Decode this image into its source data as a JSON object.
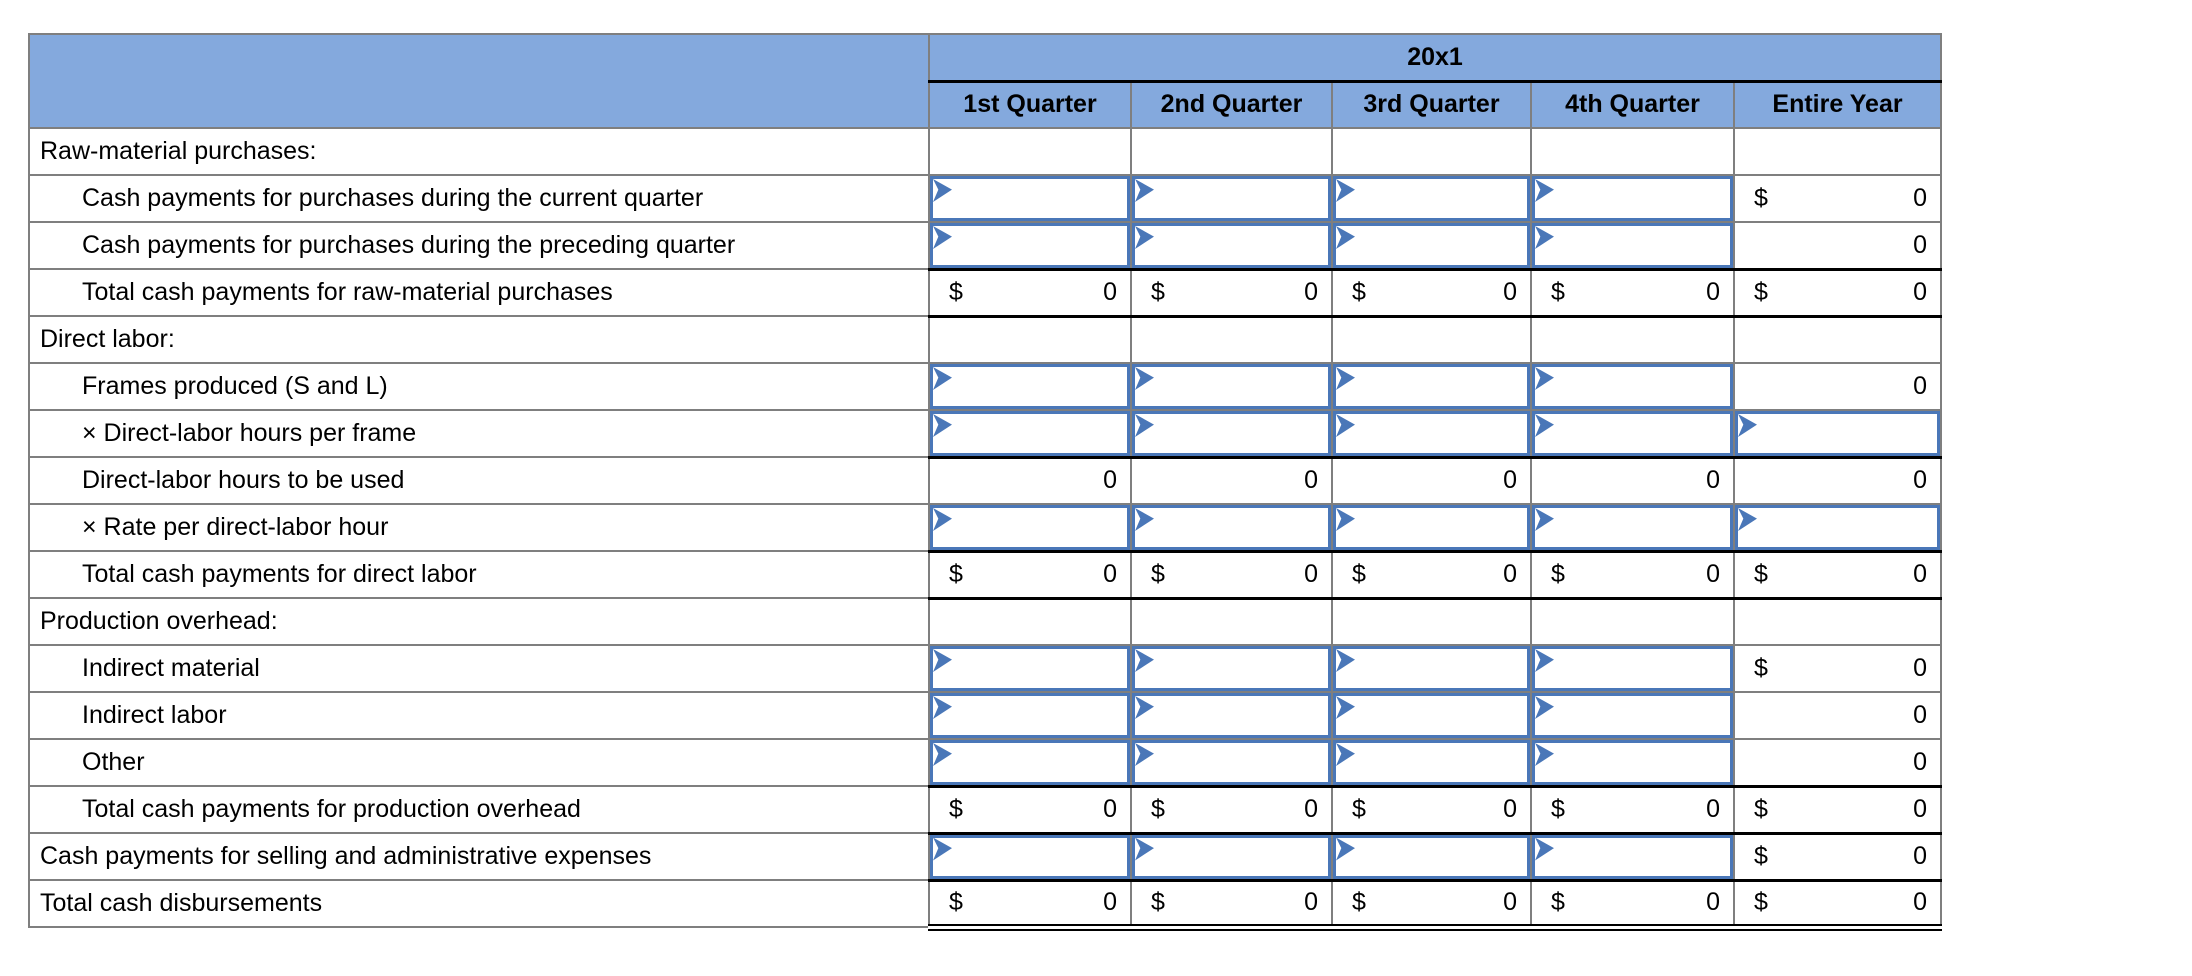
{
  "table": {
    "year_header": "20x1",
    "quarter_columns": [
      "1st Quarter",
      "2nd Quarter",
      "3rd Quarter",
      "4th Quarter",
      "Entire Year"
    ],
    "currency_symbol": "$",
    "rows": [
      {
        "label": "Raw-material purchases:",
        "indent": false,
        "cells": [
          {
            "t": "empty"
          },
          {
            "t": "empty"
          },
          {
            "t": "empty"
          },
          {
            "t": "empty"
          },
          {
            "t": "empty"
          }
        ]
      },
      {
        "label": "Cash payments for purchases during the current quarter",
        "indent": true,
        "cells": [
          {
            "t": "input"
          },
          {
            "t": "input"
          },
          {
            "t": "input"
          },
          {
            "t": "input"
          },
          {
            "t": "val",
            "dollar": true,
            "v": "0"
          }
        ]
      },
      {
        "label": "Cash payments for purchases during the preceding quarter",
        "indent": true,
        "cells": [
          {
            "t": "input"
          },
          {
            "t": "input"
          },
          {
            "t": "input"
          },
          {
            "t": "input"
          },
          {
            "t": "val",
            "dollar": false,
            "v": "0"
          }
        ]
      },
      {
        "label": "Total cash payments for raw-material purchases",
        "indent": true,
        "line_top": true,
        "line_bottom": true,
        "cells": [
          {
            "t": "val",
            "dollar": true,
            "v": "0"
          },
          {
            "t": "val",
            "dollar": true,
            "v": "0"
          },
          {
            "t": "val",
            "dollar": true,
            "v": "0"
          },
          {
            "t": "val",
            "dollar": true,
            "v": "0"
          },
          {
            "t": "val",
            "dollar": true,
            "v": "0"
          }
        ]
      },
      {
        "label": "Direct labor:",
        "indent": false,
        "cells": [
          {
            "t": "empty"
          },
          {
            "t": "empty"
          },
          {
            "t": "empty"
          },
          {
            "t": "empty"
          },
          {
            "t": "empty"
          }
        ]
      },
      {
        "label": "Frames produced (S and L)",
        "indent": true,
        "cells": [
          {
            "t": "input"
          },
          {
            "t": "input"
          },
          {
            "t": "input"
          },
          {
            "t": "input"
          },
          {
            "t": "val",
            "dollar": false,
            "v": "0"
          }
        ]
      },
      {
        "label": "× Direct-labor hours per frame",
        "indent": true,
        "cells": [
          {
            "t": "input"
          },
          {
            "t": "input"
          },
          {
            "t": "input"
          },
          {
            "t": "input"
          },
          {
            "t": "input"
          }
        ]
      },
      {
        "label": "Direct-labor hours to be used",
        "indent": true,
        "line_top": true,
        "cells": [
          {
            "t": "val",
            "dollar": false,
            "v": "0"
          },
          {
            "t": "val",
            "dollar": false,
            "v": "0"
          },
          {
            "t": "val",
            "dollar": false,
            "v": "0"
          },
          {
            "t": "val",
            "dollar": false,
            "v": "0"
          },
          {
            "t": "val",
            "dollar": false,
            "v": "0"
          }
        ]
      },
      {
        "label": "× Rate per direct-labor hour",
        "indent": true,
        "cells": [
          {
            "t": "input"
          },
          {
            "t": "input"
          },
          {
            "t": "input"
          },
          {
            "t": "input"
          },
          {
            "t": "input"
          }
        ]
      },
      {
        "label": "Total cash payments for direct labor",
        "indent": true,
        "line_top": true,
        "line_bottom": true,
        "cells": [
          {
            "t": "val",
            "dollar": true,
            "v": "0"
          },
          {
            "t": "val",
            "dollar": true,
            "v": "0"
          },
          {
            "t": "val",
            "dollar": true,
            "v": "0"
          },
          {
            "t": "val",
            "dollar": true,
            "v": "0"
          },
          {
            "t": "val",
            "dollar": true,
            "v": "0"
          }
        ]
      },
      {
        "label": "Production overhead:",
        "indent": false,
        "cells": [
          {
            "t": "empty"
          },
          {
            "t": "empty"
          },
          {
            "t": "empty"
          },
          {
            "t": "empty"
          },
          {
            "t": "empty"
          }
        ]
      },
      {
        "label": "Indirect material",
        "indent": true,
        "cells": [
          {
            "t": "input"
          },
          {
            "t": "input"
          },
          {
            "t": "input"
          },
          {
            "t": "input"
          },
          {
            "t": "val",
            "dollar": true,
            "v": "0"
          }
        ]
      },
      {
        "label": "Indirect labor",
        "indent": true,
        "cells": [
          {
            "t": "input"
          },
          {
            "t": "input"
          },
          {
            "t": "input"
          },
          {
            "t": "input"
          },
          {
            "t": "val",
            "dollar": false,
            "v": "0"
          }
        ]
      },
      {
        "label": "Other",
        "indent": true,
        "cells": [
          {
            "t": "input"
          },
          {
            "t": "input"
          },
          {
            "t": "input"
          },
          {
            "t": "input"
          },
          {
            "t": "val",
            "dollar": false,
            "v": "0"
          }
        ]
      },
      {
        "label": "Total cash payments for production overhead",
        "indent": true,
        "line_top": true,
        "line_bottom": true,
        "cells": [
          {
            "t": "val",
            "dollar": true,
            "v": "0"
          },
          {
            "t": "val",
            "dollar": true,
            "v": "0"
          },
          {
            "t": "val",
            "dollar": true,
            "v": "0"
          },
          {
            "t": "val",
            "dollar": true,
            "v": "0"
          },
          {
            "t": "val",
            "dollar": true,
            "v": "0"
          }
        ]
      },
      {
        "label": "Cash payments for selling and administrative expenses",
        "indent": false,
        "cells": [
          {
            "t": "input"
          },
          {
            "t": "input"
          },
          {
            "t": "input"
          },
          {
            "t": "input"
          },
          {
            "t": "val",
            "dollar": true,
            "v": "0"
          }
        ]
      },
      {
        "label": "Total cash disbursements",
        "indent": false,
        "line_top": true,
        "double_bottom": true,
        "cells": [
          {
            "t": "val",
            "dollar": true,
            "v": "0"
          },
          {
            "t": "val",
            "dollar": true,
            "v": "0"
          },
          {
            "t": "val",
            "dollar": true,
            "v": "0"
          },
          {
            "t": "val",
            "dollar": true,
            "v": "0"
          },
          {
            "t": "val",
            "dollar": true,
            "v": "0"
          }
        ]
      }
    ]
  },
  "colors": {
    "header_blue": "#84a9dd",
    "grid_gray": "#7f7f7f",
    "input_border_blue": "#4a77b8",
    "line_black": "#000000"
  }
}
